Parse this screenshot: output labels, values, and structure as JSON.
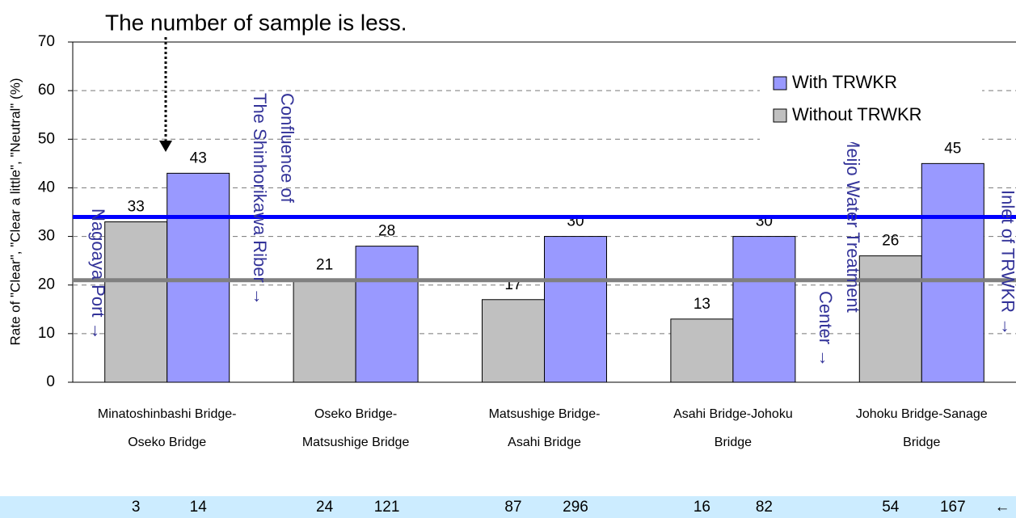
{
  "chart_data": {
    "type": "bar",
    "annotation": "The number of sample is less.",
    "y_axis_label": "Rate of \"Clear\", \"Clear a little\", \"Neutral\" (%)",
    "categories": [
      [
        "Minatoshinbashi Bridge-",
        "Oseko Bridge"
      ],
      [
        "Oseko Bridge-",
        "Matsushige Bridge"
      ],
      [
        "Matsushige Bridge-",
        "Asahi Bridge"
      ],
      [
        "Asahi Bridge-Johoku",
        "Bridge"
      ],
      [
        "Johoku Bridge-Sanage",
        "Bridge"
      ]
    ],
    "series": [
      {
        "name": "Without TRWKR",
        "color": "#c0c0c0",
        "values": [
          33,
          21,
          17,
          13,
          26
        ]
      },
      {
        "name": "With TRWKR",
        "color": "#9999ff",
        "values": [
          43,
          28,
          30,
          30,
          45
        ]
      }
    ],
    "legend_order": [
      1,
      0
    ],
    "reference_lines": [
      {
        "value": 34,
        "color": "#0000ff"
      },
      {
        "value": 21,
        "color": "#808080"
      }
    ],
    "ylim": [
      0,
      70
    ],
    "yticks": [
      0,
      10,
      20,
      30,
      40,
      50,
      60,
      70
    ],
    "grid": true,
    "place_labels": [
      {
        "lines": [
          "Nagoaya Port →"
        ],
        "group": 0,
        "edge": "left"
      },
      {
        "lines": [
          "Confluence of",
          "The Shinhorikawa Riber →"
        ],
        "group": 0,
        "edge": "right"
      },
      {
        "lines": [
          "Meijo Water Treatment",
          "Center →"
        ],
        "group": 3,
        "edge": "right"
      },
      {
        "lines": [
          "Inlet of TRWKR →"
        ],
        "group": 4,
        "edge": "right"
      }
    ],
    "sample_counts": [
      [
        3,
        14
      ],
      [
        24,
        121
      ],
      [
        87,
        296
      ],
      [
        16,
        82
      ],
      [
        54,
        167
      ]
    ],
    "sample_arrow": "←"
  }
}
